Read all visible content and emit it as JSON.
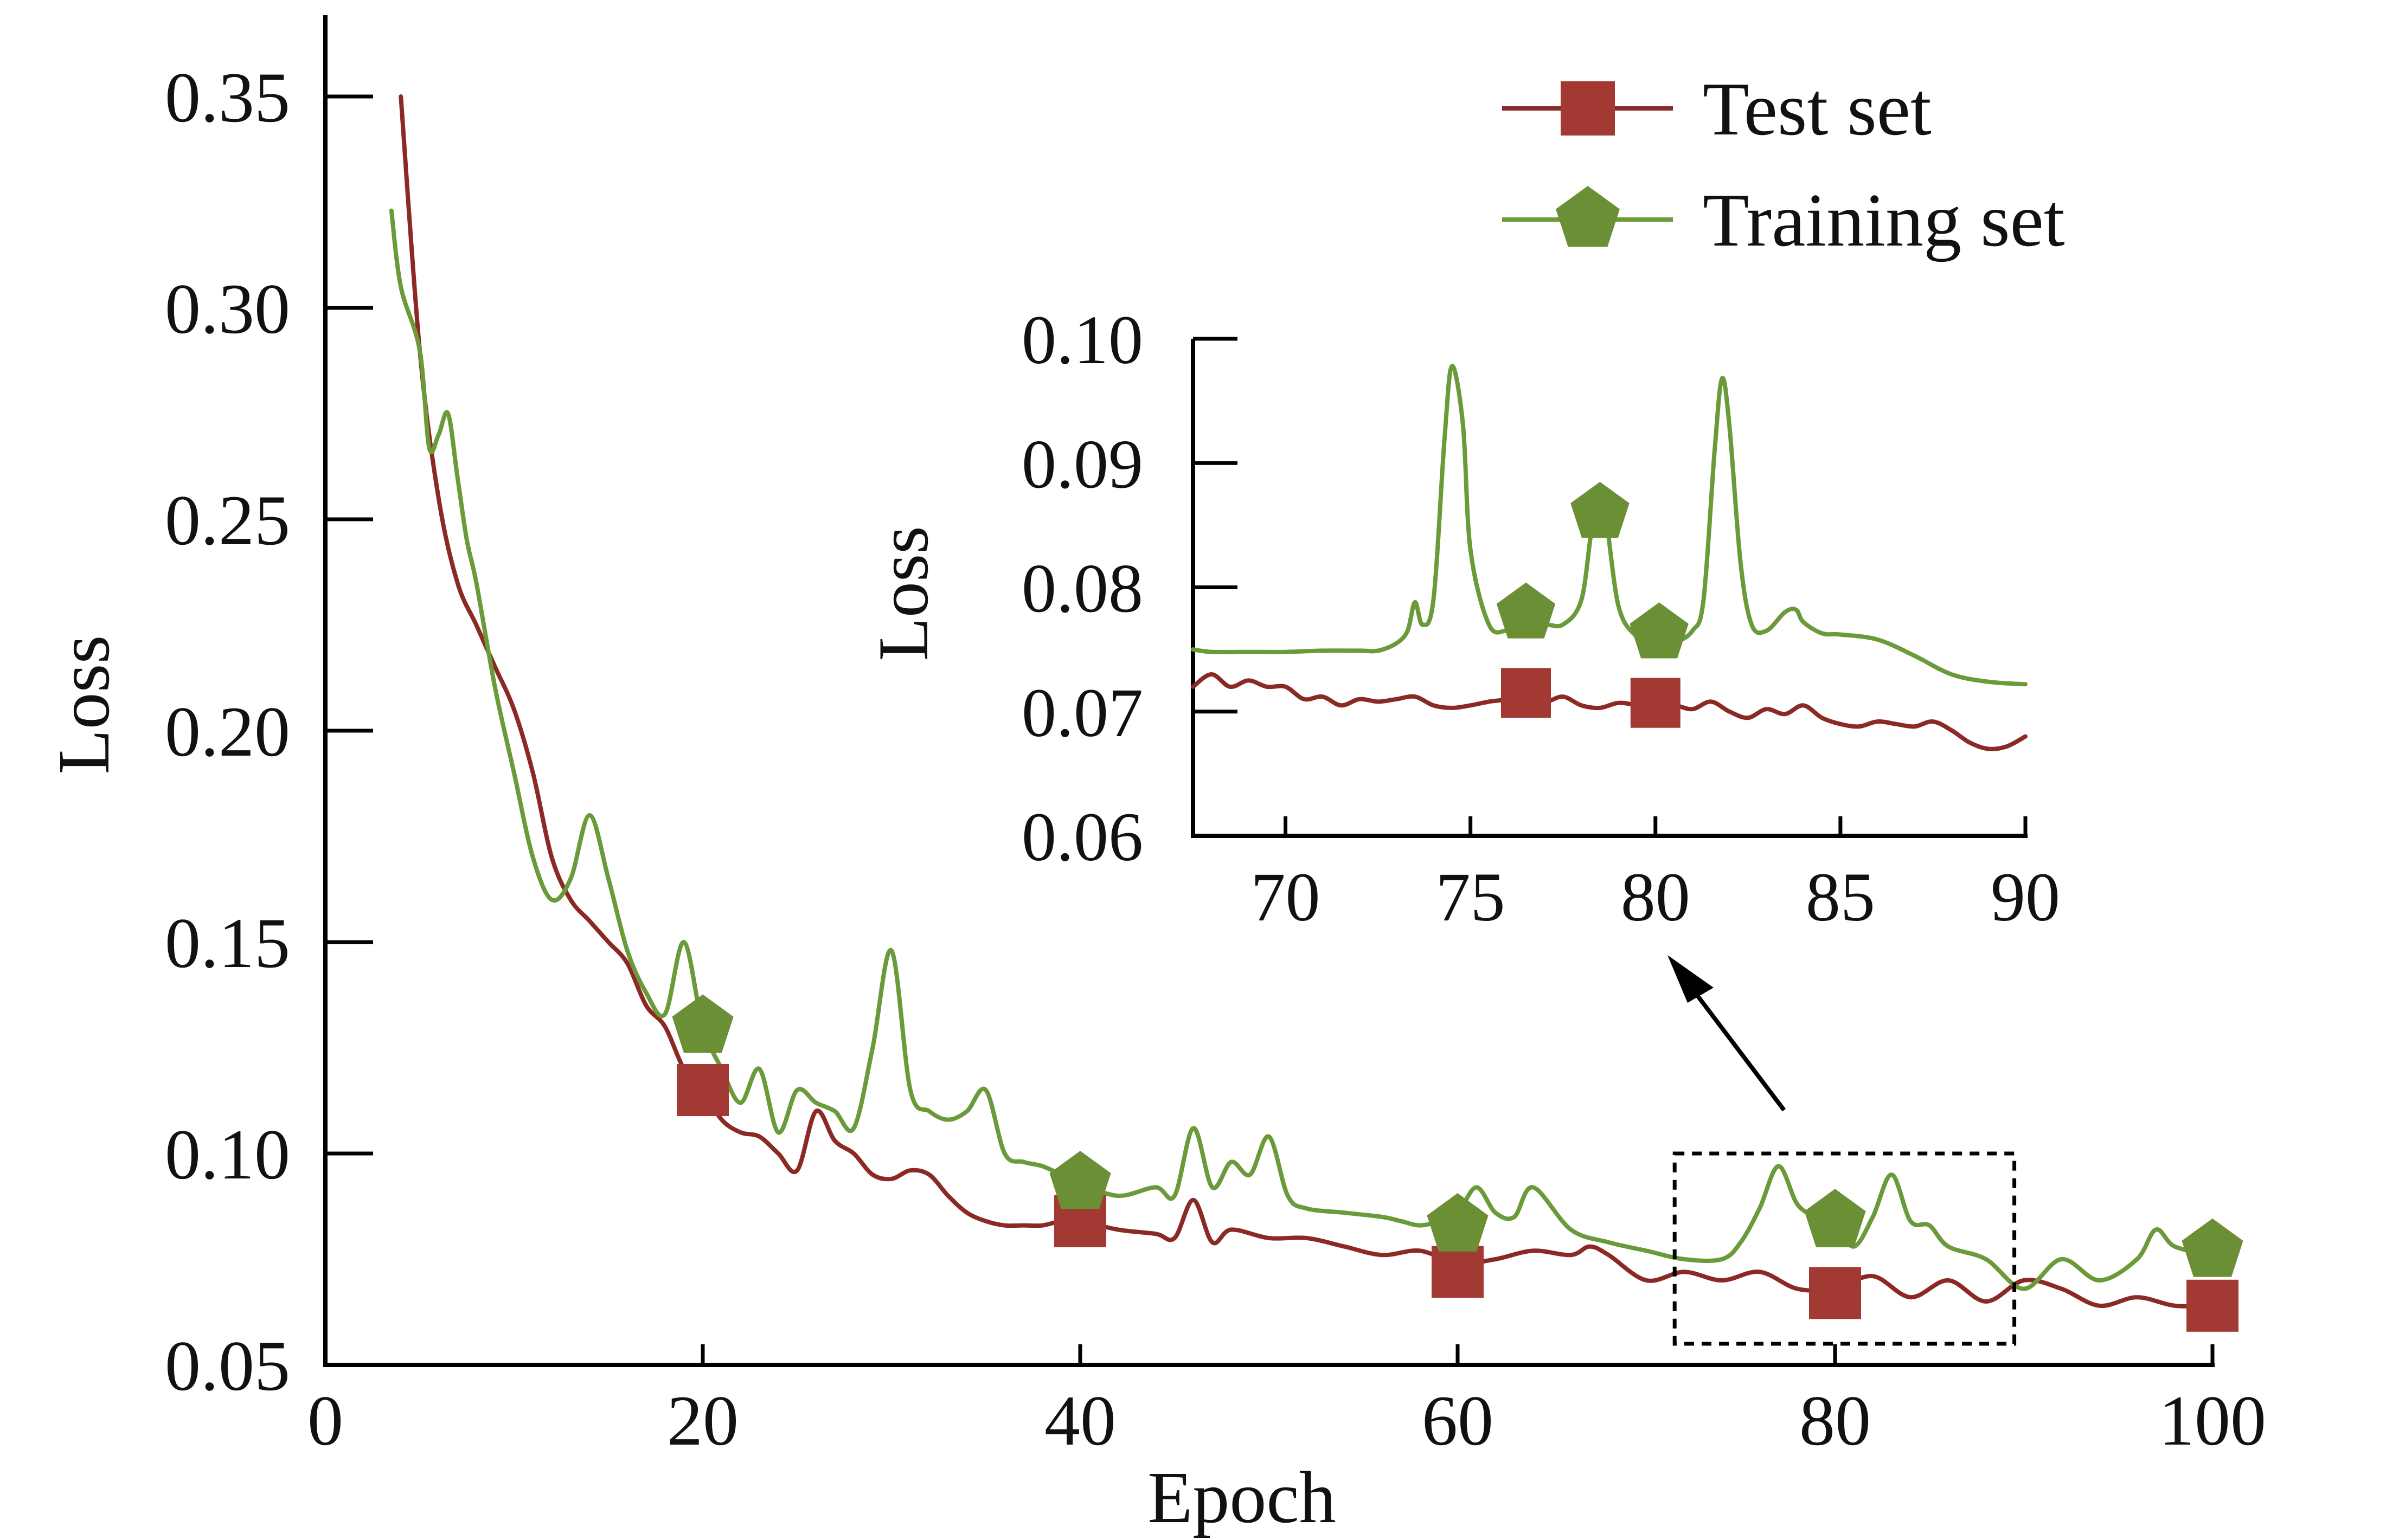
{
  "chart_data": {
    "type": "line",
    "main": {
      "xlabel": "Epoch",
      "ylabel": "Loss",
      "xlim": [
        0,
        100
      ],
      "ylim": [
        0.05,
        0.36
      ],
      "xticks": [
        0,
        20,
        40,
        60,
        80,
        100
      ],
      "xtick_labels": [
        "0",
        "20",
        "40",
        "60",
        "80",
        "100"
      ],
      "yticks": [
        0.05,
        0.1,
        0.15,
        0.2,
        0.25,
        0.3,
        0.35
      ],
      "ytick_labels": [
        "0.05",
        "0.10",
        "0.15",
        "0.20",
        "0.25",
        "0.30",
        "0.35"
      ],
      "grid": false,
      "legend_position": "top-right",
      "series": [
        {
          "name": "Test set",
          "color": "#8b2a25",
          "marker": "square",
          "marker_color": "#a23a33",
          "x": [
            4,
            5,
            6,
            7,
            8,
            9,
            10,
            11,
            12,
            13,
            14,
            15,
            16,
            17,
            18,
            19,
            20,
            21,
            22,
            23,
            24,
            25,
            26,
            27,
            28,
            29,
            30,
            31,
            32,
            33,
            34,
            35,
            36,
            37,
            38,
            39,
            40,
            42,
            44,
            45,
            46,
            47,
            48,
            50,
            52,
            54,
            56,
            58,
            60,
            62,
            64,
            66,
            67,
            68,
            70,
            72,
            74,
            76,
            78,
            80,
            82,
            84,
            86,
            88,
            90,
            92,
            94,
            96,
            98,
            100
          ],
          "y": [
            0.35,
            0.29,
            0.255,
            0.235,
            0.225,
            0.215,
            0.205,
            0.19,
            0.17,
            0.16,
            0.155,
            0.15,
            0.145,
            0.135,
            0.13,
            0.12,
            0.115,
            0.108,
            0.105,
            0.104,
            0.1,
            0.096,
            0.11,
            0.103,
            0.1,
            0.095,
            0.094,
            0.096,
            0.095,
            0.09,
            0.086,
            0.084,
            0.083,
            0.083,
            0.083,
            0.084,
            0.084,
            0.082,
            0.081,
            0.08,
            0.089,
            0.079,
            0.082,
            0.08,
            0.08,
            0.078,
            0.076,
            0.077,
            0.074,
            0.075,
            0.077,
            0.076,
            0.078,
            0.076,
            0.07,
            0.072,
            0.07,
            0.072,
            0.068,
            0.068,
            0.071,
            0.066,
            0.07,
            0.065,
            0.07,
            0.068,
            0.064,
            0.066,
            0.064,
            0.064
          ]
        },
        {
          "name": "Training set",
          "color": "#6a9a3a",
          "marker": "pentagon",
          "marker_color": "#6a8f35",
          "x": [
            3.5,
            4,
            5,
            5.5,
            6,
            6.5,
            7,
            7.5,
            8,
            9,
            10,
            11,
            12,
            13,
            14,
            15,
            16,
            17,
            18,
            19,
            20,
            21,
            22,
            23,
            24,
            25,
            26,
            27,
            28,
            29,
            30,
            31,
            32,
            33,
            34,
            35,
            36,
            37,
            38,
            39,
            40,
            42,
            44,
            45,
            46,
            47,
            48,
            49,
            50,
            51,
            52,
            54,
            56,
            57,
            58,
            59,
            60,
            61,
            62,
            63,
            64,
            66,
            68,
            70,
            72,
            74,
            75,
            76,
            77,
            78,
            79,
            80,
            81,
            82,
            83,
            84,
            85,
            86,
            88,
            90,
            92,
            94,
            96,
            97,
            98,
            100
          ],
          "y": [
            0.323,
            0.305,
            0.29,
            0.267,
            0.27,
            0.275,
            0.26,
            0.245,
            0.235,
            0.21,
            0.19,
            0.17,
            0.16,
            0.165,
            0.18,
            0.165,
            0.148,
            0.138,
            0.133,
            0.15,
            0.13,
            0.12,
            0.112,
            0.12,
            0.105,
            0.115,
            0.112,
            0.11,
            0.106,
            0.125,
            0.148,
            0.115,
            0.11,
            0.108,
            0.11,
            0.115,
            0.1,
            0.098,
            0.097,
            0.095,
            0.093,
            0.09,
            0.092,
            0.09,
            0.106,
            0.092,
            0.098,
            0.095,
            0.104,
            0.09,
            0.087,
            0.086,
            0.085,
            0.084,
            0.083,
            0.084,
            0.086,
            0.092,
            0.086,
            0.085,
            0.092,
            0.082,
            0.079,
            0.077,
            0.075,
            0.075,
            0.079,
            0.087,
            0.097,
            0.088,
            0.085,
            0.083,
            0.078,
            0.085,
            0.095,
            0.084,
            0.083,
            0.078,
            0.075,
            0.068,
            0.075,
            0.07,
            0.075,
            0.082,
            0.078,
            0.076
          ]
        }
      ],
      "markers": {
        "Test set": [
          [
            20,
            0.115
          ],
          [
            40,
            0.084
          ],
          [
            60,
            0.072
          ],
          [
            80,
            0.067
          ],
          [
            100,
            0.064
          ]
        ],
        "Training set": [
          [
            20,
            0.13
          ],
          [
            40,
            0.093
          ],
          [
            60,
            0.083
          ],
          [
            80,
            0.084
          ],
          [
            100,
            0.077
          ]
        ]
      },
      "zoom_region": {
        "x": [
          71.5,
          89.5
        ],
        "y": [
          0.055,
          0.1
        ],
        "style": "dashed"
      }
    },
    "inset": {
      "xlabel": "",
      "ylabel": "Loss",
      "xlim": [
        67.5,
        90
      ],
      "ylim": [
        0.06,
        0.1
      ],
      "xticks": [
        70,
        75,
        80,
        85,
        90
      ],
      "xtick_labels": [
        "70",
        "75",
        "80",
        "85",
        "90"
      ],
      "yticks": [
        0.06,
        0.07,
        0.08,
        0.09,
        0.1
      ],
      "ytick_labels": [
        "0.06",
        "0.07",
        "0.08",
        "0.09",
        "0.10"
      ],
      "series": [
        {
          "name": "Test set",
          "color": "#8b2a25",
          "x": [
            67.5,
            68,
            68.5,
            69,
            69.5,
            70,
            70.5,
            71,
            71.5,
            72,
            72.5,
            73,
            73.5,
            74,
            74.5,
            75,
            75.5,
            76,
            76.5,
            77,
            77.5,
            78,
            78.5,
            79,
            79.5,
            80,
            80.5,
            81,
            81.5,
            82,
            82.5,
            83,
            83.5,
            84,
            84.5,
            85,
            85.5,
            86,
            86.5,
            87,
            87.5,
            88,
            88.5,
            89,
            89.5,
            90
          ],
          "y": [
            0.072,
            0.073,
            0.072,
            0.0725,
            0.072,
            0.072,
            0.071,
            0.0712,
            0.0705,
            0.071,
            0.0708,
            0.071,
            0.0712,
            0.0705,
            0.0703,
            0.0705,
            0.0708,
            0.071,
            0.0715,
            0.0708,
            0.0712,
            0.0705,
            0.0703,
            0.0707,
            0.0705,
            0.0702,
            0.0705,
            0.0702,
            0.0708,
            0.07,
            0.0695,
            0.0702,
            0.0698,
            0.0705,
            0.0695,
            0.069,
            0.0688,
            0.0692,
            0.069,
            0.0688,
            0.0692,
            0.0685,
            0.0675,
            0.067,
            0.0672,
            0.068
          ]
        },
        {
          "name": "Training set",
          "color": "#6a9a3a",
          "x": [
            67.5,
            68,
            69,
            70,
            71,
            72,
            72.5,
            73,
            73.3,
            73.5,
            73.7,
            74,
            74.3,
            74.5,
            74.8,
            75,
            75.5,
            76,
            76.5,
            77,
            77.5,
            78,
            78.3,
            78.6,
            79,
            79.5,
            80,
            80.5,
            81,
            81.3,
            81.6,
            81.8,
            82,
            82.3,
            82.6,
            83,
            83.5,
            83.8,
            84,
            84.5,
            85,
            86,
            87,
            88,
            89,
            90
          ],
          "y": [
            0.075,
            0.0748,
            0.0748,
            0.0748,
            0.0749,
            0.0749,
            0.0749,
            0.0755,
            0.0765,
            0.0788,
            0.077,
            0.079,
            0.092,
            0.0978,
            0.093,
            0.083,
            0.077,
            0.0765,
            0.0765,
            0.077,
            0.077,
            0.079,
            0.085,
            0.0865,
            0.0785,
            0.076,
            0.075,
            0.0755,
            0.0765,
            0.079,
            0.091,
            0.0968,
            0.093,
            0.082,
            0.077,
            0.0765,
            0.078,
            0.0782,
            0.0772,
            0.0763,
            0.0762,
            0.0758,
            0.0745,
            0.073,
            0.0724,
            0.0722
          ]
        }
      ],
      "markers": {
        "Test set": [
          [
            76.5,
            0.0715
          ],
          [
            80,
            0.0707
          ]
        ],
        "Training set": [
          [
            76.5,
            0.0779
          ],
          [
            78.5,
            0.086
          ],
          [
            80.1,
            0.0763
          ]
        ]
      }
    }
  }
}
